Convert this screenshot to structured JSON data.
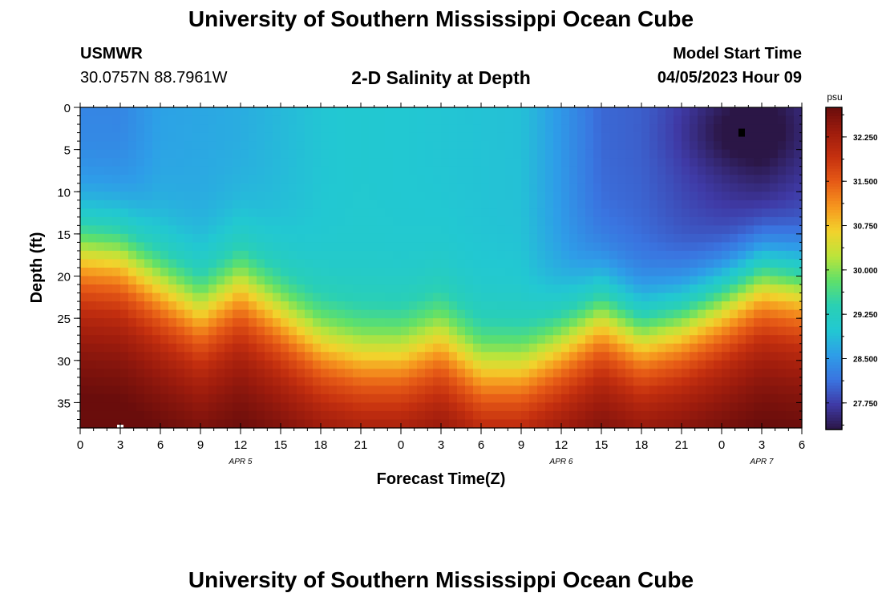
{
  "header": {
    "title": "University of Southern Mississippi Ocean Cube",
    "station": "USMWR",
    "coords": "30.0757N  88.7961W",
    "plot_title": "2-D Salinity at Depth",
    "model_start_label": "Model Start Time",
    "model_start_value": "04/05/2023 Hour 09"
  },
  "footer": {
    "title": "University of Southern Mississippi Ocean Cube"
  },
  "colors": {
    "ramp": [
      "#2b1646",
      "#3f3aa6",
      "#3a74e0",
      "#2e9de8",
      "#22c8d2",
      "#2ad0b4",
      "#5fe06a",
      "#bde43a",
      "#f2d22c",
      "#f6951e",
      "#e65a16",
      "#c5300f",
      "#9e1c0d",
      "#6a0d0c"
    ]
  },
  "chart_data": {
    "type": "heatmap",
    "title": "2-D Salinity at Depth",
    "xlabel": "Forecast Time(Z)",
    "ylabel": "Depth (ft)",
    "x_tick_labels": [
      "0",
      "3",
      "6",
      "9",
      "12",
      "15",
      "18",
      "21",
      "0",
      "3",
      "6",
      "9",
      "12",
      "15",
      "18",
      "21",
      "0",
      "3",
      "6"
    ],
    "x_range_hours": [
      0,
      54
    ],
    "x_day_labels": [
      {
        "label": "APR 5",
        "hour": 12
      },
      {
        "label": "APR 6",
        "hour": 36
      },
      {
        "label": "APR 7",
        "hour": 51
      }
    ],
    "y_ticks": [
      0,
      5,
      10,
      15,
      20,
      25,
      30,
      35
    ],
    "ylim": [
      0,
      38
    ],
    "y_inverted": true,
    "colorbar": {
      "unit": "psu",
      "ticks": [
        "32.250",
        "31.500",
        "30.750",
        "30.000",
        "29.250",
        "28.500",
        "27.750"
      ],
      "range": [
        27.3,
        32.75
      ]
    },
    "interface_depth_ft": [
      {
        "hour": 0,
        "depth": 17
      },
      {
        "hour": 3,
        "depth": 17.5
      },
      {
        "hour": 6,
        "depth": 21
      },
      {
        "hour": 9,
        "depth": 24
      },
      {
        "hour": 12,
        "depth": 21
      },
      {
        "hour": 15,
        "depth": 24.5
      },
      {
        "hour": 18,
        "depth": 28
      },
      {
        "hour": 21,
        "depth": 29.5
      },
      {
        "hour": 24,
        "depth": 29.5
      },
      {
        "hour": 27,
        "depth": 27.5
      },
      {
        "hour": 30,
        "depth": 31
      },
      {
        "hour": 33,
        "depth": 31
      },
      {
        "hour": 36,
        "depth": 28
      },
      {
        "hour": 39,
        "depth": 24.5
      },
      {
        "hour": 42,
        "depth": 27
      },
      {
        "hour": 45,
        "depth": 25.5
      },
      {
        "hour": 48,
        "depth": 23
      },
      {
        "hour": 51,
        "depth": 20
      },
      {
        "hour": 54,
        "depth": 21
      }
    ],
    "surface_salinity_psu": [
      {
        "hour": 0,
        "value": 28.3
      },
      {
        "hour": 3,
        "value": 28.3
      },
      {
        "hour": 6,
        "value": 28.6
      },
      {
        "hour": 12,
        "value": 28.7
      },
      {
        "hour": 18,
        "value": 28.95
      },
      {
        "hour": 21,
        "value": 29.0
      },
      {
        "hour": 27,
        "value": 28.95
      },
      {
        "hour": 33,
        "value": 28.9
      },
      {
        "hour": 36,
        "value": 28.5
      },
      {
        "hour": 39,
        "value": 28.05
      },
      {
        "hour": 42,
        "value": 28.0
      },
      {
        "hour": 45,
        "value": 27.8
      },
      {
        "hour": 48,
        "value": 27.6
      },
      {
        "hour": 51,
        "value": 27.4
      },
      {
        "hour": 54,
        "value": 27.6
      }
    ],
    "bottom_salinity_psu": 32.3,
    "max_marker": {
      "hour": 3,
      "depth": 38
    },
    "min_marker": {
      "hour": 49.5,
      "depth": 3
    },
    "grid": false
  }
}
